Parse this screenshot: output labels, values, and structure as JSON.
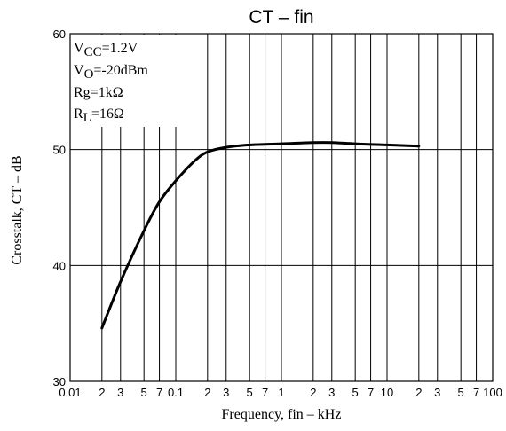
{
  "chart_data": {
    "type": "line",
    "title": "CT – fin",
    "xlabel": "Frequency, fin – kHz",
    "ylabel": "Crosstalk, CT – dB",
    "x_scale": "log",
    "xlim": [
      0.01,
      100
    ],
    "ylim": [
      30,
      60
    ],
    "grid": true,
    "y_ticks": [
      "30",
      "40",
      "50",
      "60"
    ],
    "x_ticks": [
      {
        "value": 0.01,
        "label": "0.01",
        "major": true
      },
      {
        "value": 0.02,
        "label": "2"
      },
      {
        "value": 0.03,
        "label": "3"
      },
      {
        "value": 0.05,
        "label": "5"
      },
      {
        "value": 0.07,
        "label": "7"
      },
      {
        "value": 0.1,
        "label": "0.1",
        "major": true
      },
      {
        "value": 0.2,
        "label": "2"
      },
      {
        "value": 0.3,
        "label": "3"
      },
      {
        "value": 0.5,
        "label": "5"
      },
      {
        "value": 0.7,
        "label": "7"
      },
      {
        "value": 1,
        "label": "1",
        "major": true
      },
      {
        "value": 2,
        "label": "2"
      },
      {
        "value": 3,
        "label": "3"
      },
      {
        "value": 5,
        "label": "5"
      },
      {
        "value": 7,
        "label": "7"
      },
      {
        "value": 10,
        "label": "10",
        "major": true
      },
      {
        "value": 20,
        "label": "2"
      },
      {
        "value": 30,
        "label": "3"
      },
      {
        "value": 50,
        "label": "5"
      },
      {
        "value": 70,
        "label": "7"
      },
      {
        "value": 100,
        "label": "100",
        "major": true
      }
    ],
    "series": [
      {
        "x": [
          0.02,
          0.03,
          0.05,
          0.07,
          0.1,
          0.15,
          0.2,
          0.3,
          0.5,
          1,
          2,
          3,
          5,
          10,
          20
        ],
        "y": [
          34.6,
          38.6,
          43.0,
          45.5,
          47.3,
          49.0,
          49.8,
          50.2,
          50.4,
          50.5,
          50.6,
          50.6,
          50.5,
          50.4,
          50.3
        ]
      }
    ],
    "conditions": [
      {
        "main": "V",
        "sub": "CC",
        "rest": "=1.2V"
      },
      {
        "main": "V",
        "sub": "O",
        "rest": "=-20dBm"
      },
      {
        "main": "Rg",
        "sub": "",
        "rest": "=1kΩ"
      },
      {
        "main": "R",
        "sub": "L",
        "rest": "=16Ω"
      }
    ],
    "style": {
      "line_color": "#000000",
      "grid_color": "#000000"
    }
  }
}
